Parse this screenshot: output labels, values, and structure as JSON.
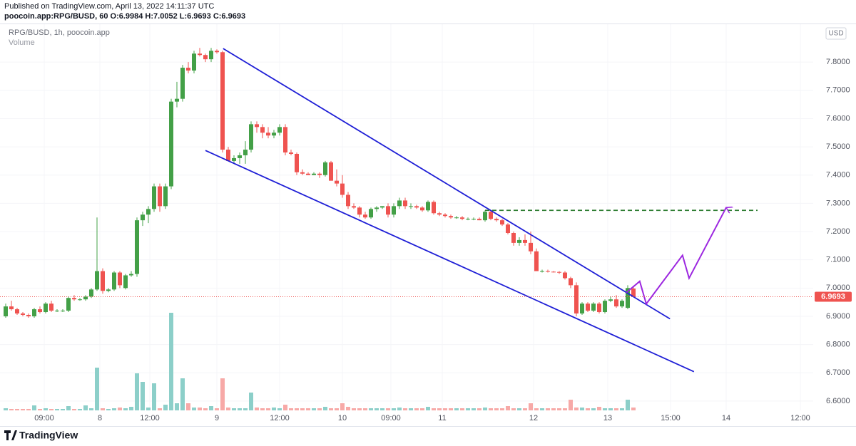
{
  "header": {
    "published": "Published on TradingView.com, April 13, 2022 14:11:37 UTC",
    "symbol": "poocoin.app:RPG/BUSD, 60 O:6.9984 H:7.0052 L:6.9693 C:6.9693"
  },
  "footer": {
    "brand": "TradingView"
  },
  "chart_data": {
    "type": "candlestick",
    "legend": "RPG/BUSD, 1h, poocoin.app",
    "volume_label": "Volume",
    "currency": "USD",
    "up_color": "#43a047",
    "down_color": "#ef5350",
    "volume_up_color": "#8ccfc9",
    "volume_down_color": "#f7a9a7",
    "xlim": [
      -1,
      141.5
    ],
    "ylim": [
      6.567,
      7.934
    ],
    "yticks": [
      {
        "value": 6.6,
        "label": "6.6000"
      },
      {
        "value": 6.7,
        "label": "6.7000"
      },
      {
        "value": 6.8,
        "label": "6.8000"
      },
      {
        "value": 6.9,
        "label": "6.9000"
      },
      {
        "value": 7.0,
        "label": "7.0000"
      },
      {
        "value": 7.1,
        "label": "7.1000"
      },
      {
        "value": 7.2,
        "label": "7.2000"
      },
      {
        "value": 7.3,
        "label": "7.3000"
      },
      {
        "value": 7.4,
        "label": "7.4000"
      },
      {
        "value": 7.5,
        "label": "7.5000"
      },
      {
        "value": 7.6,
        "label": "7.6000"
      },
      {
        "value": 7.7,
        "label": "7.7000"
      },
      {
        "value": 7.8,
        "label": "7.8000"
      }
    ],
    "xticks": [
      {
        "value": 6.75,
        "label": "09:00"
      },
      {
        "value": 16.5,
        "label": "8"
      },
      {
        "value": 25.25,
        "label": "12:00"
      },
      {
        "value": 37,
        "label": "9"
      },
      {
        "value": 48,
        "label": "12:00"
      },
      {
        "value": 59,
        "label": "10"
      },
      {
        "value": 67.5,
        "label": "09:00"
      },
      {
        "value": 76.5,
        "label": "11"
      },
      {
        "value": 92.5,
        "label": "12"
      },
      {
        "value": 105.5,
        "label": "13"
      },
      {
        "value": 116.5,
        "label": "15:00"
      },
      {
        "value": 126.25,
        "label": "14"
      },
      {
        "value": 139.25,
        "label": "12:00"
      }
    ],
    "open": [
      6.9,
      6.935,
      6.925,
      6.91,
      6.905,
      6.9,
      6.925,
      6.915,
      6.945,
      6.92,
      6.92,
      6.92,
      6.965,
      6.96,
      6.96,
      6.97,
      6.995,
      7.06,
      6.99,
      6.995,
      7.055,
      7.0,
      7.045,
      7.05,
      7.24,
      7.26,
      7.28,
      7.36,
      7.29,
      7.36,
      7.66,
      7.67,
      7.78,
      7.77,
      7.83,
      7.825,
      7.81,
      7.84,
      7.835,
      7.49,
      7.45,
      7.46,
      7.47,
      7.49,
      7.58,
      7.57,
      7.55,
      7.54,
      7.55,
      7.57,
      7.48,
      7.475,
      7.41,
      7.405,
      7.4,
      7.405,
      7.4,
      7.445,
      7.38,
      7.37,
      7.33,
      7.29,
      7.285,
      7.26,
      7.25,
      7.28,
      7.285,
      7.29,
      7.26,
      7.29,
      7.31,
      7.29,
      7.29,
      7.285,
      7.275,
      7.305,
      7.265,
      7.26,
      7.255,
      7.25,
      7.25,
      7.245,
      7.245,
      7.245,
      7.24,
      7.27,
      7.245,
      7.24,
      7.225,
      7.195,
      7.16,
      7.17,
      7.16,
      7.13,
      7.06,
      7.06,
      7.058,
      7.057,
      7.055,
      7.035,
      7.01,
      6.91,
      6.945,
      6.92,
      6.945,
      6.915,
      6.955,
      6.96,
      6.935,
      6.93,
      6.9984
    ],
    "high": [
      6.945,
      6.955,
      6.93,
      6.915,
      6.91,
      6.93,
      6.935,
      6.95,
      6.955,
      6.925,
      6.925,
      6.97,
      6.975,
      6.965,
      6.975,
      7.0,
      7.25,
      7.07,
      7.0,
      7.06,
      7.06,
      7.05,
      7.06,
      7.25,
      7.27,
      7.29,
      7.37,
      7.37,
      7.37,
      7.67,
      7.73,
      7.79,
      7.8,
      7.84,
      7.85,
      7.83,
      7.85,
      7.845,
      7.84,
      7.5,
      7.47,
      7.48,
      7.52,
      7.59,
      7.59,
      7.58,
      7.57,
      7.56,
      7.58,
      7.58,
      7.49,
      7.48,
      7.42,
      7.41,
      7.41,
      7.41,
      7.45,
      7.45,
      7.42,
      7.4,
      7.34,
      7.3,
      7.29,
      7.27,
      7.285,
      7.29,
      7.29,
      7.3,
      7.3,
      7.32,
      7.32,
      7.3,
      7.295,
      7.29,
      7.31,
      7.31,
      7.27,
      7.265,
      7.26,
      7.255,
      7.255,
      7.25,
      7.25,
      7.25,
      7.275,
      7.275,
      7.25,
      7.245,
      7.23,
      7.2,
      7.18,
      7.19,
      7.2,
      7.14,
      7.065,
      7.065,
      7.06,
      7.06,
      7.06,
      7.04,
      7.02,
      6.95,
      6.95,
      6.95,
      6.95,
      6.96,
      6.97,
      6.975,
      6.96,
      7.01,
      7.0052
    ],
    "low": [
      6.895,
      6.92,
      6.905,
      6.9,
      6.895,
      6.895,
      6.91,
      6.91,
      6.915,
      6.915,
      6.915,
      6.915,
      6.955,
      6.955,
      6.955,
      6.965,
      6.99,
      6.98,
      6.985,
      6.99,
      7.0,
      6.995,
      7.04,
      7.04,
      7.22,
      7.23,
      7.27,
      7.27,
      7.28,
      7.35,
      7.64,
      7.66,
      7.76,
      7.76,
      7.82,
      7.8,
      7.8,
      7.83,
      7.48,
      7.45,
      7.44,
      7.44,
      7.44,
      7.48,
      7.55,
      7.53,
      7.53,
      7.53,
      7.54,
      7.47,
      7.47,
      7.4,
      7.4,
      7.4,
      7.4,
      7.39,
      7.395,
      7.38,
      7.36,
      7.32,
      7.28,
      7.28,
      7.25,
      7.245,
      7.245,
      7.27,
      7.28,
      7.25,
      7.25,
      7.28,
      7.28,
      7.28,
      7.28,
      7.27,
      7.27,
      7.26,
      7.255,
      7.25,
      7.245,
      7.245,
      7.24,
      7.24,
      7.24,
      7.24,
      7.235,
      7.24,
      7.235,
      7.22,
      7.19,
      7.15,
      7.15,
      7.15,
      7.12,
      7.06,
      7.055,
      7.055,
      7.055,
      7.05,
      7.03,
      7.0,
      6.9,
      6.905,
      6.915,
      6.915,
      6.91,
      6.91,
      6.95,
      6.93,
      6.93,
      6.925,
      6.9693
    ],
    "close": [
      6.935,
      6.925,
      6.91,
      6.905,
      6.9,
      6.925,
      6.915,
      6.945,
      6.92,
      6.92,
      6.92,
      6.965,
      6.96,
      6.96,
      6.97,
      6.995,
      7.06,
      6.99,
      6.995,
      7.055,
      7.01,
      7.045,
      7.05,
      7.24,
      7.26,
      7.28,
      7.36,
      7.29,
      7.36,
      7.66,
      7.67,
      7.78,
      7.77,
      7.83,
      7.825,
      7.81,
      7.84,
      7.835,
      7.49,
      7.45,
      7.46,
      7.47,
      7.49,
      7.58,
      7.57,
      7.55,
      7.54,
      7.55,
      7.57,
      7.48,
      7.475,
      7.41,
      7.405,
      7.4,
      7.405,
      7.4,
      7.445,
      7.38,
      7.37,
      7.33,
      7.29,
      7.285,
      7.26,
      7.25,
      7.28,
      7.285,
      7.29,
      7.26,
      7.29,
      7.31,
      7.29,
      7.29,
      7.285,
      7.275,
      7.305,
      7.265,
      7.26,
      7.255,
      7.25,
      7.25,
      7.245,
      7.245,
      7.245,
      7.24,
      7.27,
      7.245,
      7.24,
      7.225,
      7.195,
      7.16,
      7.17,
      7.16,
      7.13,
      7.06,
      7.06,
      7.058,
      7.057,
      7.055,
      7.035,
      7.01,
      6.91,
      6.945,
      6.92,
      6.945,
      6.915,
      6.955,
      6.96,
      6.935,
      6.955,
      7.0,
      6.9693
    ],
    "volume": [
      3,
      2,
      2,
      2,
      2,
      7,
      2,
      3,
      2,
      2,
      2,
      6,
      2,
      2,
      7,
      3,
      60,
      3,
      2,
      3,
      4,
      3,
      5,
      52,
      40,
      4,
      38,
      3,
      8,
      137,
      10,
      45,
      10,
      4,
      4,
      3,
      6,
      3,
      45,
      4,
      3,
      3,
      3,
      25,
      4,
      3,
      3,
      4,
      3,
      8,
      3,
      3,
      3,
      3,
      3,
      3,
      5,
      3,
      3,
      10,
      5,
      3,
      3,
      3,
      3,
      3,
      3,
      3,
      3,
      4,
      3,
      3,
      3,
      3,
      5,
      3,
      3,
      3,
      3,
      3,
      3,
      3,
      3,
      3,
      4,
      3,
      3,
      3,
      6,
      3,
      3,
      3,
      10,
      3,
      3,
      3,
      3,
      3,
      3,
      15,
      4,
      4,
      3,
      3,
      5,
      3,
      3,
      3,
      3,
      15,
      4
    ],
    "drawings": [
      {
        "style": "solid",
        "color": "#1f1fd6",
        "x": [
          38.1,
          116.4
        ],
        "y": [
          7.848,
          6.891
        ]
      },
      {
        "style": "solid",
        "color": "#1f1fd6",
        "x": [
          35,
          120.6
        ],
        "y": [
          7.487,
          6.704
        ]
      },
      {
        "style": "dashed",
        "color": "#2e7d32",
        "x": [
          84,
          131.75
        ],
        "y": [
          7.275,
          7.275
        ]
      },
      {
        "style": "arrow",
        "color": "#9c27e0",
        "x": [
          108.75,
          111.1,
          112.25,
          118.6,
          119.75,
          126.25
        ],
        "y": [
          6.984,
          7.024,
          6.944,
          7.116,
          7.035,
          7.285
        ]
      }
    ]
  }
}
